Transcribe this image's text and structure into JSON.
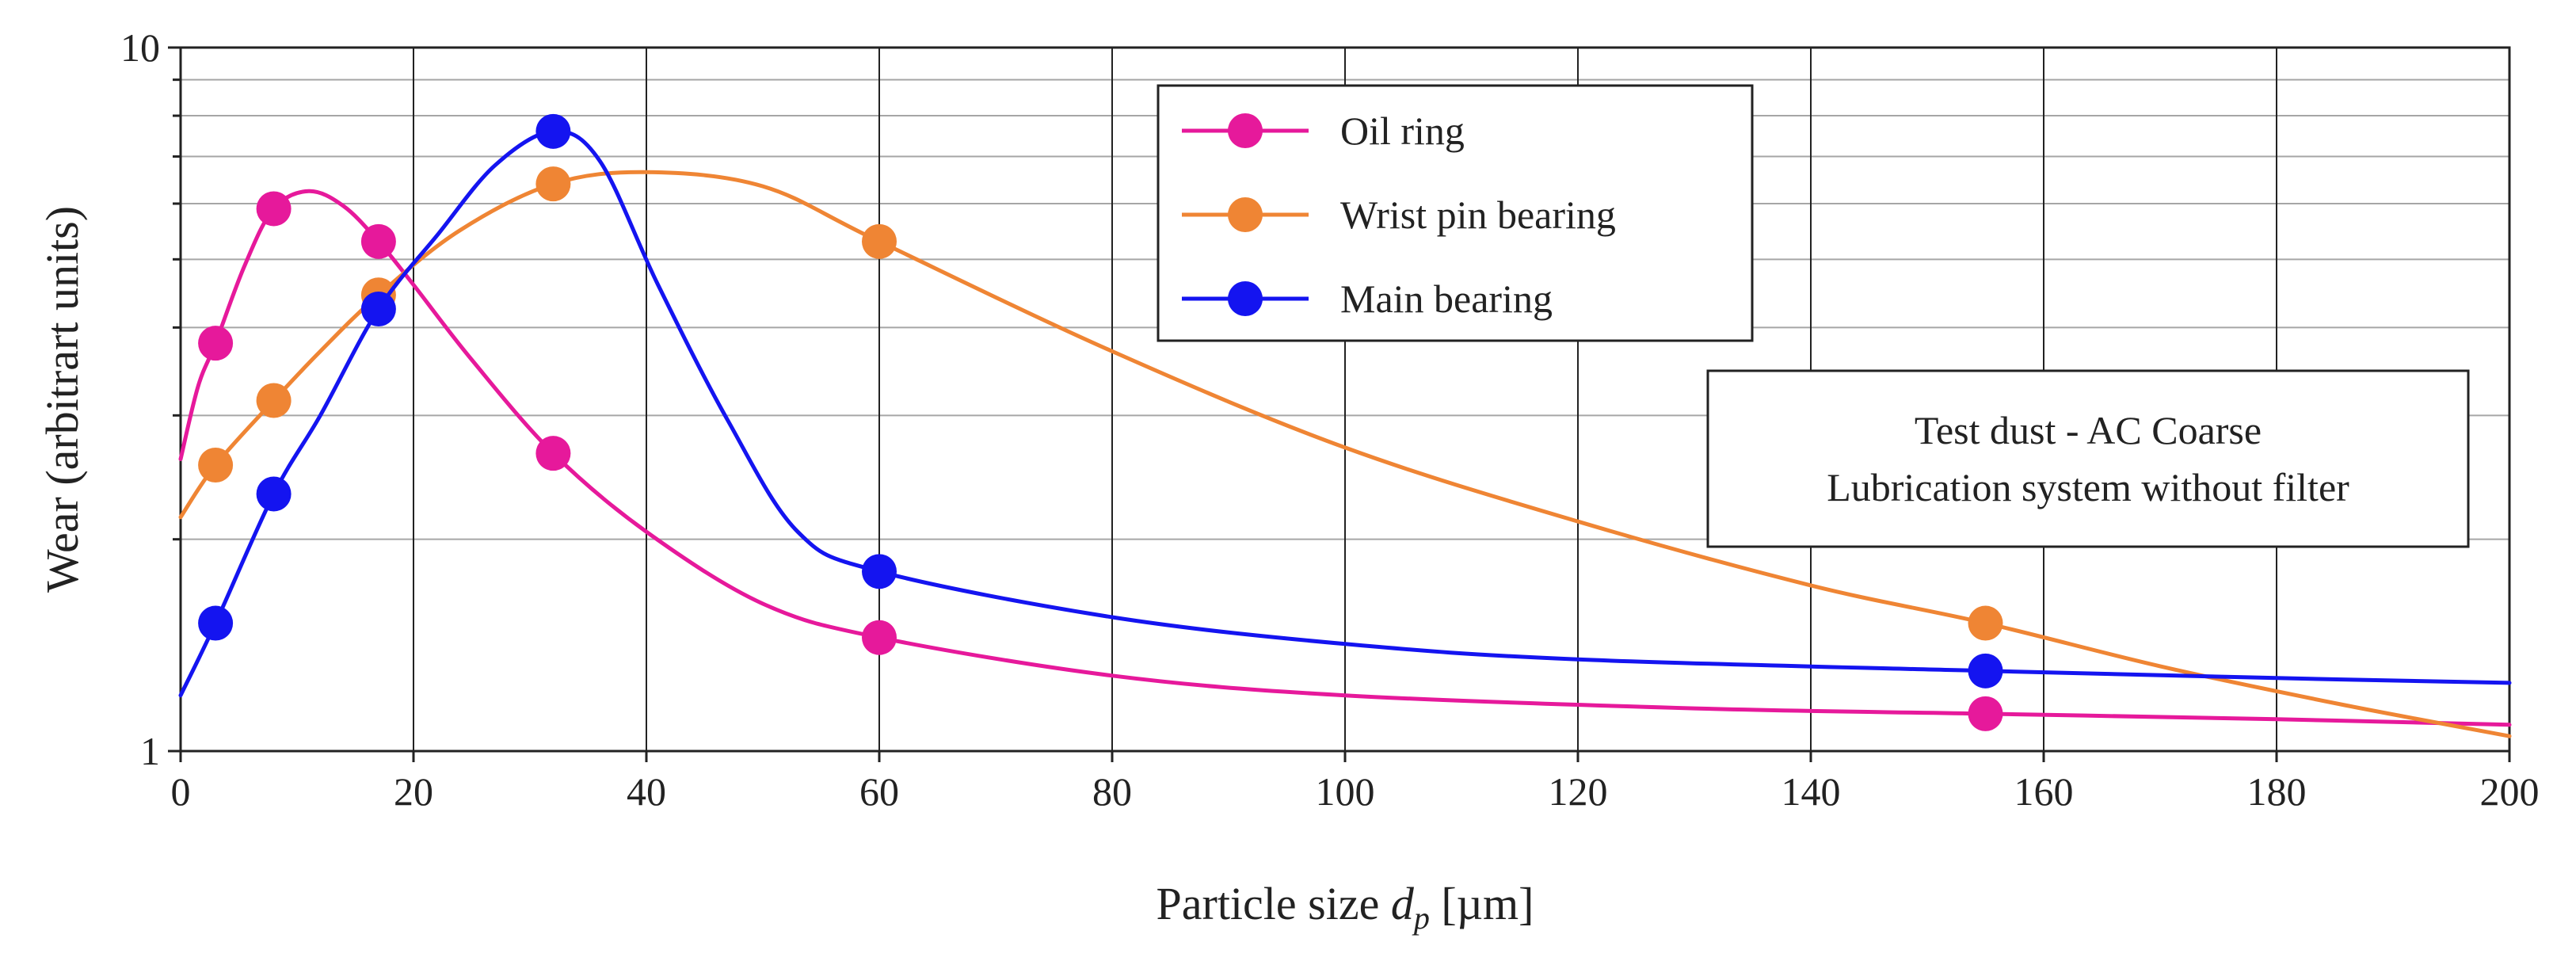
{
  "chart_data": {
    "type": "line",
    "title": "",
    "xlabel": {
      "main": "Particle size ",
      "var": "d",
      "sub": "p",
      "unit": " [µm]"
    },
    "ylabel": "Wear (arbitrart units)",
    "xlim": [
      0,
      200
    ],
    "ylim": [
      1,
      10
    ],
    "yscale": "log",
    "x_ticks": [
      0,
      20,
      40,
      60,
      80,
      100,
      120,
      140,
      160,
      180,
      200
    ],
    "y_ticks": [
      1,
      10
    ],
    "grid": "on",
    "legend_position": "top-center",
    "annotation": {
      "lines": [
        "Test dust - AC Coarse",
        "Lubrication system without filter"
      ]
    },
    "series": [
      {
        "name": "Oil ring",
        "color": "#e6199b",
        "markers": [
          {
            "x": 3,
            "y": 3.8
          },
          {
            "x": 8,
            "y": 5.9
          },
          {
            "x": 17,
            "y": 5.3
          },
          {
            "x": 32,
            "y": 2.65
          },
          {
            "x": 60,
            "y": 1.45
          },
          {
            "x": 155,
            "y": 1.13
          }
        ],
        "curve": [
          {
            "x": 0,
            "y": 2.6
          },
          {
            "x": 1.5,
            "y": 3.3
          },
          {
            "x": 3,
            "y": 3.8
          },
          {
            "x": 5.5,
            "y": 4.9
          },
          {
            "x": 8,
            "y": 5.9
          },
          {
            "x": 11,
            "y": 6.25
          },
          {
            "x": 14,
            "y": 5.95
          },
          {
            "x": 17,
            "y": 5.3
          },
          {
            "x": 20,
            "y": 4.6
          },
          {
            "x": 25,
            "y": 3.6
          },
          {
            "x": 32,
            "y": 2.65
          },
          {
            "x": 40,
            "y": 2.05
          },
          {
            "x": 50,
            "y": 1.62
          },
          {
            "x": 60,
            "y": 1.45
          },
          {
            "x": 80,
            "y": 1.28
          },
          {
            "x": 100,
            "y": 1.2
          },
          {
            "x": 130,
            "y": 1.15
          },
          {
            "x": 155,
            "y": 1.13
          },
          {
            "x": 180,
            "y": 1.11
          },
          {
            "x": 200,
            "y": 1.09
          }
        ]
      },
      {
        "name": "Wrist pin bearing",
        "color": "#ef8534",
        "markers": [
          {
            "x": 3,
            "y": 2.55
          },
          {
            "x": 8,
            "y": 3.15
          },
          {
            "x": 17,
            "y": 4.45
          },
          {
            "x": 32,
            "y": 6.4
          },
          {
            "x": 60,
            "y": 5.3
          },
          {
            "x": 155,
            "y": 1.52
          }
        ],
        "curve": [
          {
            "x": 0,
            "y": 2.15
          },
          {
            "x": 3,
            "y": 2.55
          },
          {
            "x": 8,
            "y": 3.15
          },
          {
            "x": 12,
            "y": 3.7
          },
          {
            "x": 17,
            "y": 4.45
          },
          {
            "x": 24,
            "y": 5.5
          },
          {
            "x": 32,
            "y": 6.4
          },
          {
            "x": 40,
            "y": 6.65
          },
          {
            "x": 50,
            "y": 6.35
          },
          {
            "x": 60,
            "y": 5.3
          },
          {
            "x": 80,
            "y": 3.7
          },
          {
            "x": 100,
            "y": 2.7
          },
          {
            "x": 120,
            "y": 2.12
          },
          {
            "x": 140,
            "y": 1.72
          },
          {
            "x": 155,
            "y": 1.52
          },
          {
            "x": 170,
            "y": 1.32
          },
          {
            "x": 185,
            "y": 1.17
          },
          {
            "x": 200,
            "y": 1.05
          }
        ]
      },
      {
        "name": "Main bearing",
        "color": "#1414f0",
        "markers": [
          {
            "x": 3,
            "y": 1.52
          },
          {
            "x": 8,
            "y": 2.32
          },
          {
            "x": 17,
            "y": 4.25
          },
          {
            "x": 32,
            "y": 7.6
          },
          {
            "x": 60,
            "y": 1.8
          },
          {
            "x": 155,
            "y": 1.3
          }
        ],
        "curve": [
          {
            "x": 0,
            "y": 1.2
          },
          {
            "x": 3,
            "y": 1.52
          },
          {
            "x": 8,
            "y": 2.32
          },
          {
            "x": 12,
            "y": 3.0
          },
          {
            "x": 17,
            "y": 4.25
          },
          {
            "x": 22,
            "y": 5.4
          },
          {
            "x": 27,
            "y": 6.8
          },
          {
            "x": 32,
            "y": 7.6
          },
          {
            "x": 36,
            "y": 6.9
          },
          {
            "x": 41,
            "y": 4.6
          },
          {
            "x": 47,
            "y": 2.95
          },
          {
            "x": 53,
            "y": 2.05
          },
          {
            "x": 60,
            "y": 1.8
          },
          {
            "x": 80,
            "y": 1.55
          },
          {
            "x": 100,
            "y": 1.42
          },
          {
            "x": 120,
            "y": 1.35
          },
          {
            "x": 155,
            "y": 1.3
          },
          {
            "x": 180,
            "y": 1.27
          },
          {
            "x": 200,
            "y": 1.25
          }
        ]
      }
    ]
  }
}
